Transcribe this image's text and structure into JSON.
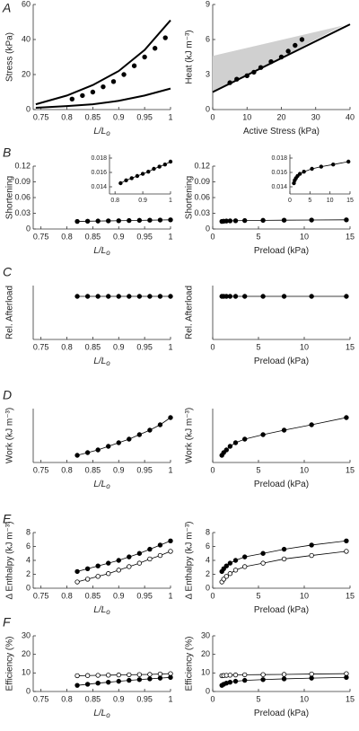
{
  "chart_data": [
    {
      "type": "line",
      "panel_label": "A",
      "ylabel": "Stress (kPa)",
      "xlabel": "L/L",
      "xlabel_sub": "o",
      "xlim": [
        0.735,
        1.0
      ],
      "xticks": [
        0.75,
        0.8,
        0.85,
        0.9,
        0.95,
        1
      ],
      "ylim": [
        0,
        60
      ],
      "yticks": [
        0,
        20,
        40,
        60
      ],
      "series": [
        {
          "color": "#000000",
          "width": 2,
          "x": [
            0.74,
            0.8,
            0.85,
            0.9,
            0.95,
            1.0
          ],
          "values": [
            3,
            8,
            14,
            22,
            34,
            51
          ]
        },
        {
          "color": "#000000",
          "width": 2,
          "x": [
            0.74,
            0.8,
            0.85,
            0.9,
            0.95,
            1.0
          ],
          "values": [
            1,
            2,
            3,
            5,
            8,
            12
          ]
        },
        {
          "color": "#000000",
          "marker": "filled",
          "x": [
            0.81,
            0.83,
            0.85,
            0.87,
            0.89,
            0.91,
            0.93,
            0.95,
            0.97,
            0.99
          ],
          "values": [
            6,
            8,
            10,
            13,
            16,
            20,
            25,
            30,
            35,
            41
          ]
        }
      ]
    },
    {
      "type": "line",
      "ylabel": "Heat (kJ m⁻³)",
      "xlabel": "Active Stress (kPa)",
      "xlim": [
        0,
        40
      ],
      "xticks": [
        0,
        10,
        20,
        30,
        40
      ],
      "ylim": [
        0,
        9
      ],
      "yticks": [
        0,
        3,
        6,
        9
      ],
      "band": {
        "color": "#d0d0d0",
        "x": [
          0,
          38
        ],
        "lower": [
          1.5,
          7.2
        ],
        "upper": [
          4.6,
          7.2
        ]
      },
      "series": [
        {
          "color": "#000000",
          "width": 2,
          "x": [
            0,
            40
          ],
          "values": [
            1.5,
            7.3
          ]
        },
        {
          "color": "#000000",
          "marker": "filled",
          "x": [
            5,
            7,
            10,
            12,
            14,
            17,
            20,
            22,
            24,
            26
          ],
          "values": [
            2.3,
            2.6,
            2.9,
            3.2,
            3.6,
            4.1,
            4.5,
            5.0,
            5.5,
            6.0
          ]
        }
      ]
    },
    {
      "type": "line",
      "panel_label": "B",
      "ylabel": "Shortening",
      "xlabel": "L/L",
      "xlabel_sub": "o",
      "xlim": [
        0.735,
        1.0
      ],
      "xticks": [
        0.75,
        0.8,
        0.85,
        0.9,
        0.95,
        1
      ],
      "ylim": [
        0,
        0.12
      ],
      "yticks": [
        0,
        0.03,
        0.06,
        0.09,
        0.12
      ],
      "series": [
        {
          "color": "#000000",
          "marker": "filled",
          "connect": true,
          "x": [
            0.82,
            0.84,
            0.86,
            0.88,
            0.9,
            0.92,
            0.94,
            0.96,
            0.98,
            1.0
          ],
          "values": [
            0.0145,
            0.0149,
            0.0152,
            0.0155,
            0.0158,
            0.0161,
            0.0165,
            0.0168,
            0.0171,
            0.0175
          ]
        }
      ]
    },
    {
      "type": "line",
      "inset": true,
      "xlim": [
        0.78,
        1.0
      ],
      "xticks": [
        0.8,
        0.9,
        1
      ],
      "ylim": [
        0.013,
        0.0185
      ],
      "yticks": [
        0.014,
        0.016,
        0.018
      ],
      "series": [
        {
          "color": "#000000",
          "marker": "filled",
          "connect": true,
          "x": [
            0.82,
            0.84,
            0.86,
            0.88,
            0.9,
            0.92,
            0.94,
            0.96,
            0.98,
            1.0
          ],
          "values": [
            0.0145,
            0.0149,
            0.0152,
            0.0155,
            0.0158,
            0.0161,
            0.0165,
            0.0168,
            0.0171,
            0.0175
          ]
        }
      ]
    },
    {
      "type": "line",
      "ylabel": "Shortening",
      "xlabel": "Preload (kPa)",
      "xlim": [
        0,
        15
      ],
      "xticks": [
        0,
        5,
        10,
        15
      ],
      "ylim": [
        0,
        0.12
      ],
      "yticks": [
        0,
        0.03,
        0.06,
        0.09,
        0.12
      ],
      "series": [
        {
          "color": "#000000",
          "marker": "filled",
          "connect": true,
          "x": [
            1.0,
            1.2,
            1.5,
            1.9,
            2.5,
            3.5,
            5.5,
            7.8,
            10.8,
            14.6
          ],
          "values": [
            0.0145,
            0.0149,
            0.0152,
            0.0155,
            0.0158,
            0.0161,
            0.0165,
            0.0168,
            0.0171,
            0.0175
          ]
        }
      ]
    },
    {
      "type": "line",
      "inset": true,
      "xlim": [
        0,
        15
      ],
      "xticks": [
        0,
        5,
        10,
        15
      ],
      "ylim": [
        0.013,
        0.0185
      ],
      "yticks": [
        0.014,
        0.016,
        0.018
      ],
      "series": [
        {
          "color": "#000000",
          "marker": "filled",
          "connect": true,
          "x": [
            1.0,
            1.2,
            1.5,
            1.9,
            2.5,
            3.5,
            5.5,
            7.8,
            10.8,
            14.6
          ],
          "values": [
            0.0145,
            0.0149,
            0.0152,
            0.0155,
            0.0158,
            0.0161,
            0.0165,
            0.0168,
            0.0171,
            0.0175
          ]
        }
      ]
    },
    {
      "type": "line",
      "panel_label": "C",
      "ylabel": "Rel. Afterload",
      "xlabel": "L/L",
      "xlabel_sub": "o",
      "xlim": [
        0.735,
        1.0
      ],
      "xticks": [
        0.75,
        0.8,
        0.85,
        0.9,
        0.95,
        1
      ],
      "ylim": [
        0,
        1
      ],
      "series": [
        {
          "color": "#000000",
          "marker": "filled",
          "connect": true,
          "x": [
            0.82,
            0.84,
            0.86,
            0.88,
            0.9,
            0.92,
            0.94,
            0.96,
            0.98,
            1.0
          ],
          "values": [
            0.8,
            0.8,
            0.8,
            0.8,
            0.8,
            0.8,
            0.8,
            0.8,
            0.8,
            0.8
          ]
        }
      ]
    },
    {
      "type": "line",
      "ylabel": "Rel. Afterload",
      "xlabel": "Preload (kPa)",
      "xlim": [
        0,
        15
      ],
      "xticks": [
        0,
        5,
        10,
        15
      ],
      "ylim": [
        0,
        1
      ],
      "series": [
        {
          "color": "#000000",
          "marker": "filled",
          "connect": true,
          "x": [
            1.0,
            1.2,
            1.5,
            1.9,
            2.5,
            3.5,
            5.5,
            7.8,
            10.8,
            14.6
          ],
          "values": [
            0.8,
            0.8,
            0.8,
            0.8,
            0.8,
            0.8,
            0.8,
            0.8,
            0.8,
            0.8
          ]
        }
      ]
    },
    {
      "type": "line",
      "panel_label": "D",
      "ylabel": "Work (kJ m⁻³)",
      "xlabel": "L/L",
      "xlabel_sub": "o",
      "xlim": [
        0.735,
        1.0
      ],
      "xticks": [
        0.75,
        0.8,
        0.85,
        0.9,
        0.95,
        1
      ],
      "ylim": [
        0,
        0.6
      ],
      "series": [
        {
          "color": "#000000",
          "marker": "filled",
          "connect": true,
          "x": [
            0.82,
            0.84,
            0.86,
            0.88,
            0.9,
            0.92,
            0.94,
            0.96,
            0.98,
            1.0
          ],
          "values": [
            0.08,
            0.11,
            0.14,
            0.18,
            0.22,
            0.26,
            0.31,
            0.36,
            0.42,
            0.5
          ]
        }
      ]
    },
    {
      "type": "line",
      "ylabel": "Work (kJ m⁻³)",
      "xlabel": "Preload (kPa)",
      "xlim": [
        0,
        15
      ],
      "xticks": [
        0,
        5,
        10,
        15
      ],
      "ylim": [
        0,
        0.6
      ],
      "series": [
        {
          "color": "#000000",
          "marker": "filled",
          "connect": true,
          "x": [
            1.0,
            1.2,
            1.5,
            1.9,
            2.5,
            3.5,
            5.5,
            7.8,
            10.8,
            14.6
          ],
          "values": [
            0.08,
            0.11,
            0.14,
            0.18,
            0.22,
            0.26,
            0.31,
            0.36,
            0.42,
            0.5
          ]
        }
      ]
    },
    {
      "type": "line",
      "panel_label": "E",
      "ylabel": "Δ Enthalpy (kJ m⁻³)",
      "xlabel": "L/L",
      "xlabel_sub": "o",
      "xlim": [
        0.735,
        1.0
      ],
      "xticks": [
        0.75,
        0.8,
        0.85,
        0.9,
        0.95,
        1
      ],
      "ylim": [
        0,
        8
      ],
      "yticks": [
        0,
        2,
        4,
        6,
        8
      ],
      "series": [
        {
          "color": "#000000",
          "marker": "filled",
          "connect": true,
          "x": [
            0.82,
            0.84,
            0.86,
            0.88,
            0.9,
            0.92,
            0.94,
            0.96,
            0.98,
            1.0
          ],
          "values": [
            2.4,
            2.8,
            3.2,
            3.6,
            4.0,
            4.5,
            5.0,
            5.6,
            6.2,
            6.8
          ]
        },
        {
          "color": "#000000",
          "marker": "open",
          "connect": true,
          "x": [
            0.82,
            0.84,
            0.86,
            0.88,
            0.9,
            0.92,
            0.94,
            0.96,
            0.98,
            1.0
          ],
          "values": [
            0.9,
            1.3,
            1.7,
            2.1,
            2.6,
            3.1,
            3.6,
            4.2,
            4.7,
            5.3
          ]
        }
      ]
    },
    {
      "type": "line",
      "ylabel": "Δ Enthalpy (kJ m⁻³)",
      "xlabel": "Preload (kPa)",
      "xlim": [
        0,
        15
      ],
      "xticks": [
        0,
        5,
        10,
        15
      ],
      "ylim": [
        0,
        8
      ],
      "yticks": [
        0,
        2,
        4,
        6,
        8
      ],
      "series": [
        {
          "color": "#000000",
          "marker": "filled",
          "connect": true,
          "x": [
            1.0,
            1.2,
            1.5,
            1.9,
            2.5,
            3.5,
            5.5,
            7.8,
            10.8,
            14.6
          ],
          "values": [
            2.4,
            2.8,
            3.2,
            3.6,
            4.0,
            4.5,
            5.0,
            5.6,
            6.2,
            6.8
          ]
        },
        {
          "color": "#000000",
          "marker": "open",
          "connect": true,
          "x": [
            1.0,
            1.2,
            1.5,
            1.9,
            2.5,
            3.5,
            5.5,
            7.8,
            10.8,
            14.6
          ],
          "values": [
            0.9,
            1.3,
            1.7,
            2.1,
            2.6,
            3.1,
            3.6,
            4.2,
            4.7,
            5.3
          ]
        }
      ]
    },
    {
      "type": "line",
      "panel_label": "F",
      "ylabel": "Efficiency (%)",
      "xlabel": "L/L",
      "xlabel_sub": "o",
      "xlim": [
        0.735,
        1.0
      ],
      "xticks": [
        0.75,
        0.8,
        0.85,
        0.9,
        0.95,
        1
      ],
      "ylim": [
        0,
        30
      ],
      "yticks": [
        0,
        10,
        20,
        30
      ],
      "series": [
        {
          "color": "#000000",
          "marker": "open",
          "connect": true,
          "x": [
            0.82,
            0.84,
            0.86,
            0.88,
            0.9,
            0.92,
            0.94,
            0.96,
            0.98,
            1.0
          ],
          "values": [
            8.5,
            8.6,
            8.7,
            8.8,
            8.9,
            9.0,
            9.1,
            9.2,
            9.4,
            9.6
          ]
        },
        {
          "color": "#000000",
          "marker": "filled",
          "connect": true,
          "x": [
            0.82,
            0.84,
            0.86,
            0.88,
            0.9,
            0.92,
            0.94,
            0.96,
            0.98,
            1.0
          ],
          "values": [
            3.3,
            3.9,
            4.5,
            5.0,
            5.5,
            6.0,
            6.4,
            6.8,
            7.2,
            7.6
          ]
        }
      ]
    },
    {
      "type": "line",
      "ylabel": "Efficiency (%)",
      "xlabel": "Preload (kPa)",
      "xlim": [
        0,
        15
      ],
      "xticks": [
        0,
        5,
        10,
        15
      ],
      "ylim": [
        0,
        30
      ],
      "yticks": [
        0,
        10,
        20,
        30
      ],
      "series": [
        {
          "color": "#000000",
          "marker": "open",
          "connect": true,
          "x": [
            1.0,
            1.2,
            1.5,
            1.9,
            2.5,
            3.5,
            5.5,
            7.8,
            10.8,
            14.6
          ],
          "values": [
            8.5,
            8.6,
            8.7,
            8.8,
            8.9,
            9.0,
            9.1,
            9.2,
            9.4,
            9.6
          ]
        },
        {
          "color": "#000000",
          "marker": "filled",
          "connect": true,
          "x": [
            1.0,
            1.2,
            1.5,
            1.9,
            2.5,
            3.5,
            5.5,
            7.8,
            10.8,
            14.6
          ],
          "values": [
            3.3,
            3.9,
            4.5,
            5.0,
            5.5,
            6.0,
            6.4,
            6.8,
            7.2,
            7.6
          ]
        }
      ]
    }
  ]
}
